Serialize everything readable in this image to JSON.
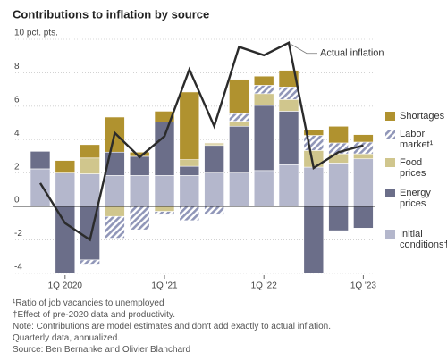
{
  "chart_data": {
    "type": "bar",
    "stacked": true,
    "title": "Contributions to inflation by source",
    "categories": [
      null,
      "1Q 2020",
      null,
      null,
      null,
      "1Q '21",
      null,
      null,
      null,
      "1Q '22",
      null,
      null,
      null,
      "1Q '23"
    ],
    "series": [
      {
        "name": "Initial conditions†",
        "color": "#b4b7cc",
        "values": [
          2.25,
          2.0,
          1.95,
          1.85,
          1.85,
          1.85,
          1.85,
          2.0,
          2.0,
          2.15,
          2.5,
          2.35,
          2.6,
          2.85
        ]
      },
      {
        "name": "Energy prices",
        "color": "#6b6e89",
        "values": [
          1.05,
          -4.0,
          -3.2,
          1.4,
          1.15,
          3.2,
          0.55,
          1.65,
          2.8,
          3.9,
          3.2,
          -4.0,
          -1.45,
          -1.3
        ]
      },
      {
        "name": "Food prices",
        "color": "#d0c68d",
        "values": [
          0,
          0,
          0.95,
          -0.6,
          0,
          -0.3,
          0.4,
          0.1,
          0.3,
          0.7,
          0.7,
          1.0,
          0.55,
          0.3
        ]
      },
      {
        "name": "Labor market¹",
        "color": "#9096b8",
        "pattern": "hatch",
        "values": [
          0,
          0,
          -0.3,
          -1.3,
          -1.4,
          -0.2,
          -0.85,
          -0.5,
          0.45,
          0.5,
          0.75,
          0.9,
          0.65,
          0.7
        ]
      },
      {
        "name": "Shortages",
        "color": "#b0922f",
        "values": [
          0,
          0.75,
          0.8,
          2.1,
          0.25,
          0.65,
          4.05,
          0.05,
          2.05,
          0.55,
          1.0,
          0.35,
          1.0,
          0.45
        ]
      }
    ],
    "line": {
      "name": "Actual inflation",
      "color": "#2b2b2b",
      "values": [
        1.4,
        -1.0,
        -2.0,
        4.4,
        2.95,
        4.2,
        8.2,
        4.8,
        9.55,
        9.05,
        9.8,
        2.3,
        3.25,
        3.65
      ]
    },
    "ylim": [
      -4.1,
      10.3
    ],
    "yticks": [
      -4,
      -2,
      0,
      2,
      4,
      6,
      8,
      {
        "value": 10,
        "label": "10 pct. pts."
      }
    ],
    "grid": true,
    "notes": [
      "¹Ratio of job vacancies to unemployed",
      "†Effect of pre-2020 data and productivity.",
      "Note: Contributions are model estimates and don't add exactly to actual inflation.",
      "Quarterly data, annualized.",
      "Source: Ben Bernanke and Olivier Blanchard"
    ]
  }
}
